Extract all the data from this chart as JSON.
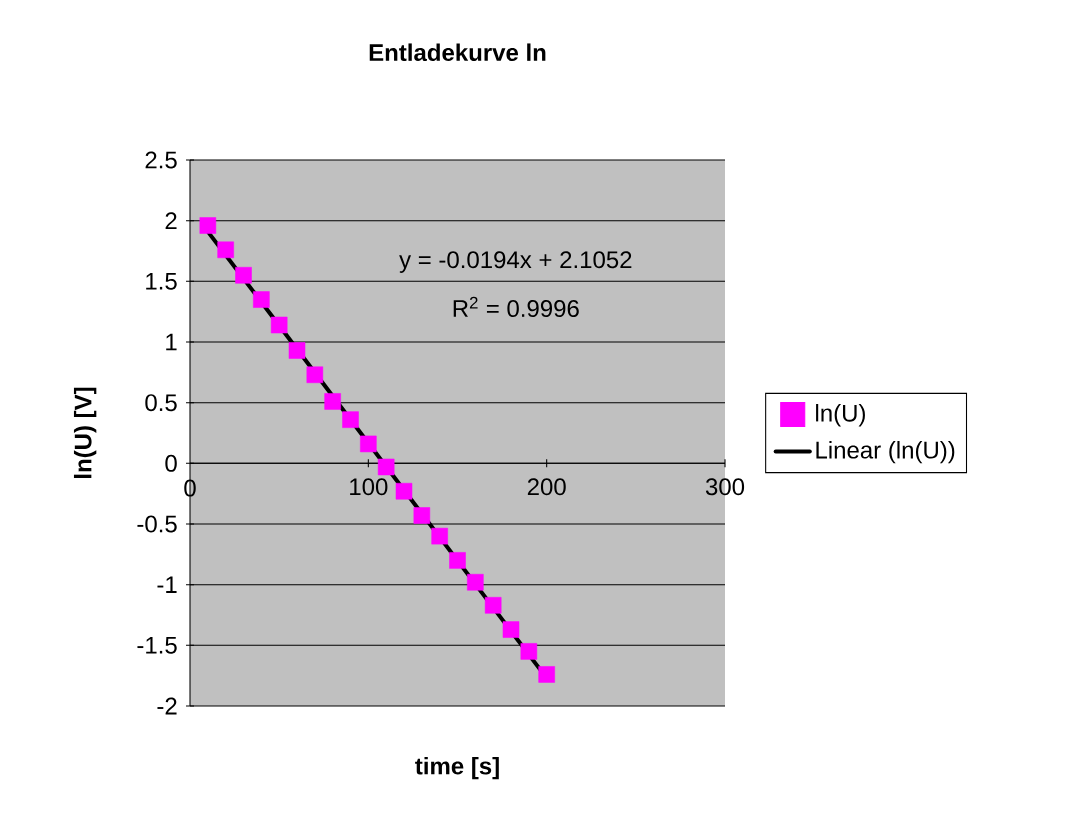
{
  "chart_data": {
    "type": "scatter",
    "title": "Entladekurve ln",
    "xlabel": "time [s]",
    "ylabel": "ln(U) [V]",
    "series": [
      {
        "name": "ln(U)",
        "marker": "square",
        "color": "#ff00ff",
        "x": [
          10,
          20,
          30,
          40,
          50,
          60,
          70,
          80,
          90,
          100,
          110,
          120,
          130,
          140,
          150,
          160,
          170,
          180,
          190,
          200
        ],
        "values": [
          1.96,
          1.76,
          1.55,
          1.35,
          1.14,
          0.93,
          0.73,
          0.51,
          0.36,
          0.16,
          -0.03,
          -0.23,
          -0.43,
          -0.6,
          -0.8,
          -0.98,
          -1.17,
          -1.37,
          -1.55,
          -1.74
        ]
      },
      {
        "name": "Linear (ln(U))",
        "type": "line",
        "marker": "none",
        "color": "#000000",
        "x": [
          10,
          200
        ],
        "values": [
          1.91,
          -1.77
        ]
      }
    ],
    "annotations": [
      "y = -0.0194x + 2.1052",
      "R$^{2}$ = 0.9996"
    ],
    "xlim": [
      0,
      300
    ],
    "ylim": [
      -2,
      2.5
    ],
    "xticks": [
      0,
      100,
      200,
      300
    ],
    "yticks": [
      -2,
      -1.5,
      -1,
      -0.5,
      0,
      0.5,
      1,
      1.5,
      2,
      2.5
    ],
    "grid": "y",
    "legend": "right",
    "line_style": "solid"
  }
}
